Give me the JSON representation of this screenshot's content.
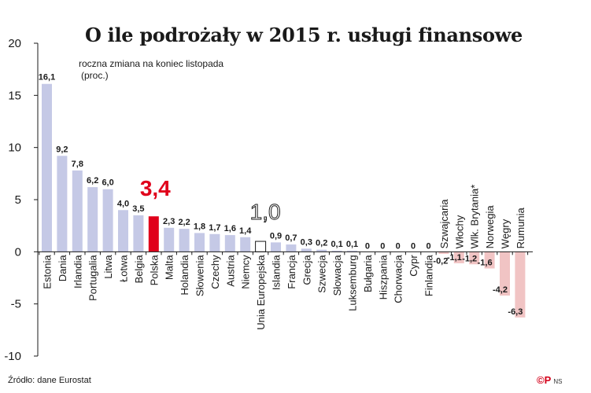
{
  "chart_data": {
    "type": "bar",
    "title": "O ile podrożały w 2015 r. usługi finansowe",
    "subtitle": "roczna zmiana na koniec listopada",
    "ylabel": "(proc.)",
    "ylim": [
      -10,
      20
    ],
    "yticks": [
      "20",
      "15",
      "10",
      "5",
      "0",
      "-5",
      "-10"
    ],
    "grid": false,
    "categories": [
      "Estonia",
      "Dania",
      "Irlandia",
      "Portugalia",
      "Litwa",
      "Łotwa",
      "Belgia",
      "Polska",
      "Malta",
      "Holandia",
      "Słowenia",
      "Czechy",
      "Austria",
      "Niemcy",
      "Unia Europejska",
      "Islandia",
      "Francja",
      "Grecja",
      "Szwecja",
      "Słowacja",
      "Luksemburg",
      "Bułgaria",
      "Hiszpania",
      "Chorwacja",
      "Cypr",
      "Finlandia",
      "Szwajcaria",
      "Włochy",
      "Wlk. Brytania*",
      "Norwegia",
      "Węgry",
      "Rumunia"
    ],
    "values": [
      16.1,
      9.2,
      7.8,
      6.2,
      6.0,
      4.0,
      3.5,
      3.4,
      2.3,
      2.2,
      1.8,
      1.7,
      1.6,
      1.4,
      1.0,
      0.9,
      0.7,
      0.3,
      0.2,
      0.1,
      0.1,
      0,
      0,
      0,
      0,
      0,
      -0.2,
      -1.1,
      -1.2,
      -1.6,
      -4.2,
      -6.3
    ],
    "labels": [
      "16,1",
      "9,2",
      "7,8",
      "6,2",
      "6,0",
      "4,0",
      "3,5",
      "3,4",
      "2,3",
      "2,2",
      "1,8",
      "1,7",
      "1,6",
      "1,4",
      "1,0",
      "0,9",
      "0,7",
      "0,3",
      "0,2",
      "0,1",
      "0,1",
      "0",
      "0",
      "0",
      "0",
      "0",
      "-0,2",
      "-1,1",
      "-1,2",
      "-1,6",
      "-4,2",
      "-6,3"
    ],
    "colors": {
      "positive": "#c5c9e6",
      "negative": "#f1c4c4",
      "highlight": "#e0001b",
      "eu_outline": "#1a1a1a",
      "axis": "#1a1a1a",
      "tick_text": "#1a1a1a"
    },
    "highlight_index": 7,
    "eu_index": 14
  },
  "footer": {
    "source": "Źródło: dane Eurostat",
    "logo_mark": "©P",
    "logo_initials": "NS"
  }
}
